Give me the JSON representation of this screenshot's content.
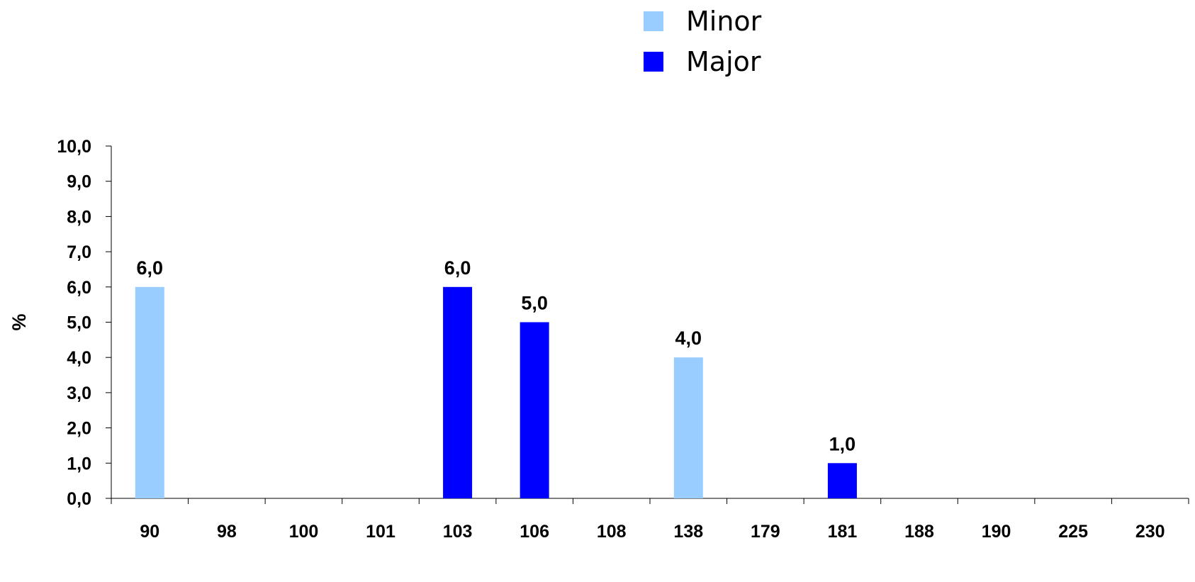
{
  "chart_data": {
    "type": "bar",
    "title": "",
    "xlabel": "",
    "ylabel": "%",
    "ylim": [
      0,
      10
    ],
    "yticks": [
      0,
      1,
      2,
      3,
      4,
      5,
      6,
      7,
      8,
      9,
      10
    ],
    "decimal_separator": ",",
    "categories": [
      "90",
      "98",
      "100",
      "101",
      "103",
      "106",
      "108",
      "138",
      "179",
      "181",
      "188",
      "190",
      "225",
      "230"
    ],
    "series": [
      {
        "name": "Minor",
        "color": "#99ccff",
        "values": [
          6.0,
          0,
          0,
          0,
          0,
          0,
          0,
          4.0,
          0,
          0,
          0,
          0,
          0,
          0
        ]
      },
      {
        "name": "Major",
        "color": "#0000ff",
        "values": [
          0,
          0,
          0,
          0,
          6.0,
          5.0,
          0,
          0,
          0,
          1.0,
          0,
          0,
          0,
          0
        ]
      }
    ],
    "grid": false,
    "legend_position": "top"
  }
}
